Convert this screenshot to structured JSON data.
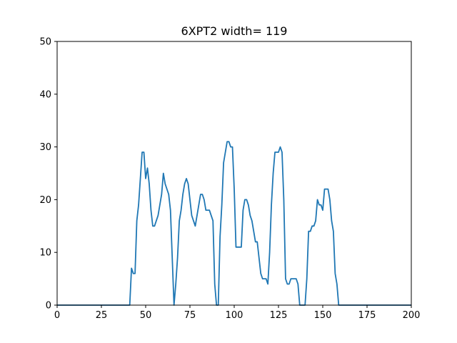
{
  "chart_data": {
    "type": "line",
    "title": "6XPT2 width= 119",
    "xlabel": "",
    "ylabel": "",
    "xlim": [
      0,
      200
    ],
    "ylim": [
      0,
      50
    ],
    "xticks": [
      0,
      25,
      50,
      75,
      100,
      125,
      150,
      175,
      200
    ],
    "yticks": [
      0,
      10,
      20,
      30,
      40,
      50
    ],
    "grid": false,
    "series": [
      {
        "color": "#1f77b4",
        "x": [
          0,
          41,
          42,
          43,
          44,
          45,
          46,
          47,
          48,
          49,
          50,
          51,
          52,
          53,
          54,
          55,
          56,
          57,
          58,
          59,
          60,
          61,
          62,
          63,
          64,
          65,
          66,
          67,
          68,
          69,
          70,
          71,
          72,
          73,
          74,
          75,
          76,
          77,
          78,
          79,
          80,
          81,
          82,
          83,
          84,
          85,
          86,
          87,
          88,
          89,
          90,
          91,
          92,
          93,
          94,
          95,
          96,
          97,
          98,
          99,
          100,
          101,
          102,
          103,
          104,
          105,
          106,
          107,
          108,
          109,
          110,
          111,
          112,
          113,
          114,
          115,
          116,
          117,
          118,
          119,
          120,
          121,
          122,
          123,
          124,
          125,
          126,
          127,
          128,
          129,
          130,
          131,
          132,
          133,
          134,
          135,
          136,
          137,
          138,
          139,
          140,
          141,
          142,
          143,
          144,
          145,
          146,
          147,
          148,
          149,
          150,
          151,
          152,
          153,
          154,
          155,
          156,
          157,
          158,
          159,
          160,
          200
        ],
        "y": [
          0,
          0,
          7,
          6,
          6,
          16,
          19,
          24,
          29,
          29,
          24,
          26,
          23,
          18,
          15,
          15,
          16,
          17,
          19,
          21,
          25,
          23,
          22,
          21,
          18,
          9,
          0,
          4,
          9,
          16,
          18,
          21,
          23,
          24,
          23,
          20,
          17,
          16,
          15,
          17,
          19,
          21,
          21,
          20,
          18,
          18,
          18,
          17,
          16,
          4,
          0,
          0,
          13,
          19,
          27,
          29,
          31,
          31,
          30,
          30,
          22,
          11,
          11,
          11,
          11,
          18,
          20,
          20,
          19,
          17,
          16,
          14,
          12,
          12,
          9,
          6,
          5,
          5,
          5,
          4,
          10,
          19,
          25,
          29,
          29,
          29,
          30,
          29,
          20,
          5,
          4,
          4,
          5,
          5,
          5,
          5,
          4,
          0,
          0,
          0,
          0,
          5,
          14,
          14,
          15,
          15,
          16,
          20,
          19,
          19,
          18,
          22,
          22,
          22,
          20,
          16,
          14,
          6,
          4,
          0,
          0,
          0
        ]
      }
    ]
  }
}
